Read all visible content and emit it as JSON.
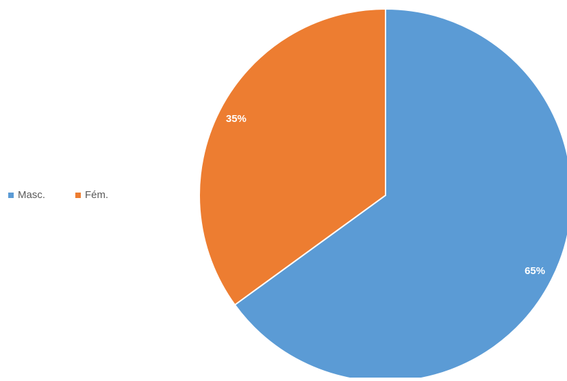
{
  "chart_data": {
    "type": "pie",
    "categories": [
      "Masc.",
      "Fém."
    ],
    "values": [
      65,
      35
    ],
    "data_labels": [
      "65%",
      "35%"
    ],
    "colors": [
      "#5B9BD5",
      "#ED7D31"
    ],
    "legend_position": "left",
    "start_angle": "12 o'clock, clockwise",
    "title": ""
  }
}
